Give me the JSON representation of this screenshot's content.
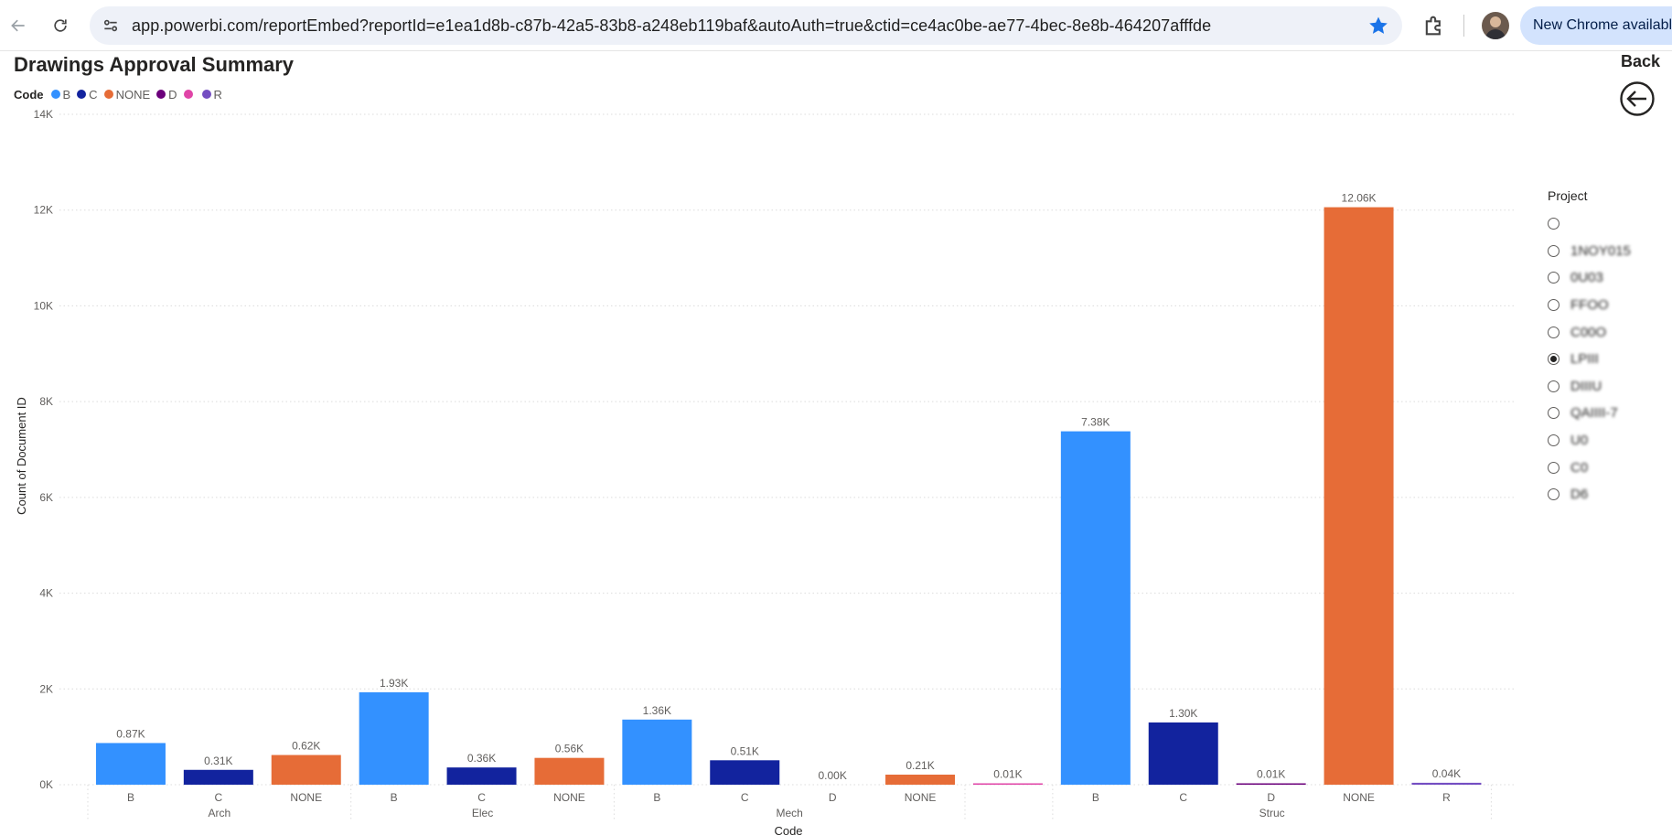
{
  "browser": {
    "url": "app.powerbi.com/reportEmbed?reportId=e1ea1d8b-c87b-42a5-83b8-a248eb119baf&autoAuth=true&ctid=ce4ac0be-ae77-4bec-8e8b-464207afffde",
    "chrome_update_label": "New Chrome available",
    "icons": [
      "back-arrow-icon",
      "reload-icon",
      "site-info-icon",
      "bookmark-star-icon",
      "extensions-icon",
      "avatar"
    ]
  },
  "report": {
    "title": "Drawings Approval Summary",
    "back_label": "Back"
  },
  "legend": {
    "title": "Code",
    "items": [
      {
        "label": "B",
        "color": "#3391ff"
      },
      {
        "label": "C",
        "color": "#12239e"
      },
      {
        "label": "NONE",
        "color": "#e66c37"
      },
      {
        "label": "D",
        "color": "#6b007b"
      },
      {
        "label": "",
        "color": "#e044a7"
      },
      {
        "label": "R",
        "color": "#744ec2"
      }
    ]
  },
  "slicer": {
    "title": "Project",
    "items": [
      {
        "label": "",
        "selected": false
      },
      {
        "label": "1NOY015",
        "selected": false
      },
      {
        "label": "0U03",
        "selected": false
      },
      {
        "label": "FFOO",
        "selected": false
      },
      {
        "label": "C00O",
        "selected": false
      },
      {
        "label": "LPIII",
        "selected": true
      },
      {
        "label": "DIIIU",
        "selected": false
      },
      {
        "label": "QAIIII-7",
        "selected": false
      },
      {
        "label": "U0",
        "selected": false
      },
      {
        "label": "C0",
        "selected": false
      },
      {
        "label": "D6",
        "selected": false
      }
    ]
  },
  "chart_data": {
    "type": "bar",
    "ylabel": "Count of Document ID",
    "xlabel": "Code",
    "ylim": [
      0,
      14000
    ],
    "yticks": [
      {
        "value": 0,
        "label": "0K"
      },
      {
        "value": 2000,
        "label": "2K"
      },
      {
        "value": 4000,
        "label": "4K"
      },
      {
        "value": 6000,
        "label": "6K"
      },
      {
        "value": 8000,
        "label": "8K"
      },
      {
        "value": 10000,
        "label": "10K"
      },
      {
        "value": 12000,
        "label": "12K"
      },
      {
        "value": 14000,
        "label": "14K"
      }
    ],
    "grid": true,
    "groups": [
      {
        "name": "Arch",
        "bars": [
          {
            "code": "B",
            "value": 870,
            "label": "0.87K",
            "color": "#3391ff"
          },
          {
            "code": "C",
            "value": 310,
            "label": "0.31K",
            "color": "#12239e"
          },
          {
            "code": "NONE",
            "value": 620,
            "label": "0.62K",
            "color": "#e66c37"
          }
        ]
      },
      {
        "name": "Elec",
        "bars": [
          {
            "code": "B",
            "value": 1930,
            "label": "1.93K",
            "color": "#3391ff"
          },
          {
            "code": "C",
            "value": 360,
            "label": "0.36K",
            "color": "#12239e"
          },
          {
            "code": "NONE",
            "value": 560,
            "label": "0.56K",
            "color": "#e66c37"
          }
        ]
      },
      {
        "name": "Mech",
        "bars": [
          {
            "code": "B",
            "value": 1360,
            "label": "1.36K",
            "color": "#3391ff"
          },
          {
            "code": "C",
            "value": 510,
            "label": "0.51K",
            "color": "#12239e"
          },
          {
            "code": "D",
            "value": 0,
            "label": "0.00K",
            "color": "#6b007b"
          },
          {
            "code": "NONE",
            "value": 210,
            "label": "0.21K",
            "color": "#e66c37"
          }
        ]
      },
      {
        "name": "",
        "bars": [
          {
            "code": "",
            "value": 10,
            "label": "0.01K",
            "color": "#e044a7"
          }
        ]
      },
      {
        "name": "Struc",
        "bars": [
          {
            "code": "B",
            "value": 7380,
            "label": "7.38K",
            "color": "#3391ff"
          },
          {
            "code": "C",
            "value": 1300,
            "label": "1.30K",
            "color": "#12239e"
          },
          {
            "code": "D",
            "value": 10,
            "label": "0.01K",
            "color": "#6b007b"
          },
          {
            "code": "NONE",
            "value": 12060,
            "label": "12.06K",
            "color": "#e66c37"
          },
          {
            "code": "R",
            "value": 40,
            "label": "0.04K",
            "color": "#744ec2"
          }
        ]
      }
    ]
  }
}
